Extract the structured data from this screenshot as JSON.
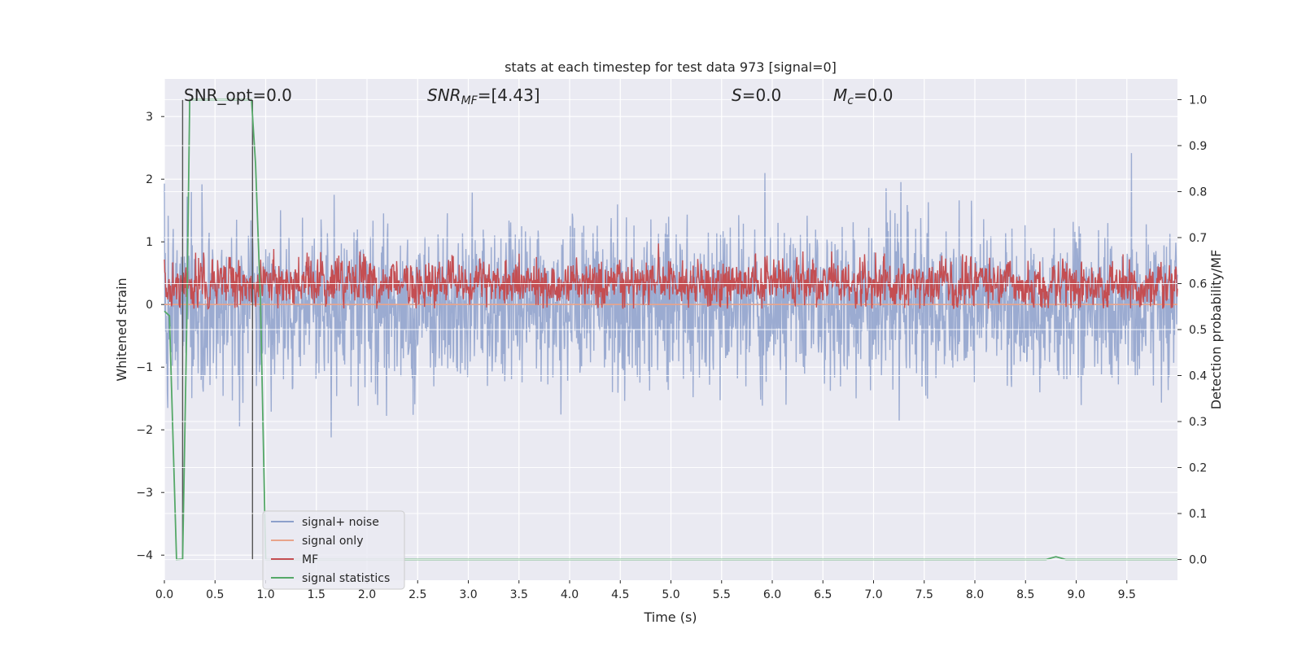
{
  "chart_data": {
    "type": "line",
    "title": "stats at each timestep for test data 973 [signal=0]",
    "xlabel": "Time (s)",
    "ylabel": "Whitened strain",
    "y2label": "Detection probability/MF",
    "xlim": [
      0.0,
      10.0
    ],
    "ylim": [
      -4.4,
      3.6
    ],
    "y2lim": [
      -0.045,
      1.045
    ],
    "x_ticks": [
      "0.0",
      "0.5",
      "1.0",
      "1.5",
      "2.0",
      "2.5",
      "3.0",
      "3.5",
      "4.0",
      "4.5",
      "5.0",
      "5.5",
      "6.0",
      "6.5",
      "7.0",
      "7.5",
      "8.0",
      "8.5",
      "9.0",
      "9.5"
    ],
    "y_ticks": [
      "3",
      "2",
      "1",
      "0",
      "−1",
      "−2",
      "−3",
      "−4"
    ],
    "y2_ticks": [
      "1.0",
      "0.9",
      "0.8",
      "0.7",
      "0.6",
      "0.5",
      "0.4",
      "0.3",
      "0.2",
      "0.1",
      "0.0"
    ],
    "grid": true,
    "legend_position": "lower-left",
    "colors": {
      "signal_noise": "#8da0cb",
      "signal_only": "#e8a48b",
      "mf": "#c44e52",
      "signal_statistics": "#55a868",
      "vline": "#555555",
      "background": "#eaeaf2"
    },
    "series": [
      {
        "name": "signal+ noise",
        "axis": "left",
        "description_kind": "noise",
        "mean": 0.0,
        "std": 0.62
      },
      {
        "name": "signal only",
        "axis": "left",
        "values_constant": 0.0
      },
      {
        "name": "MF",
        "axis": "right",
        "mean": 0.6,
        "std": 0.035
      },
      {
        "name": "signal statistics",
        "axis": "right",
        "x": [
          0.0,
          0.05,
          0.12,
          0.18,
          0.22,
          0.25,
          0.86,
          0.9,
          0.95,
          1.0,
          8.7,
          8.8,
          8.9,
          10.0
        ],
        "y": [
          0.54,
          0.53,
          0.0,
          0.001,
          0.5,
          1.0,
          1.0,
          0.86,
          0.55,
          0.0,
          0.0,
          0.006,
          0.0,
          0.0
        ]
      }
    ],
    "vlines": [
      0.18,
      0.87
    ],
    "annotations": {
      "snr_opt": "SNR_opt=0.0",
      "snr_mf_base": "SNR",
      "snr_mf_sub": "MF",
      "snr_mf_value": "=[4.43]",
      "s_label": "S",
      "s_value": "=0.0",
      "mc_base": "M",
      "mc_sub": "c",
      "mc_value": "=0.0"
    }
  }
}
